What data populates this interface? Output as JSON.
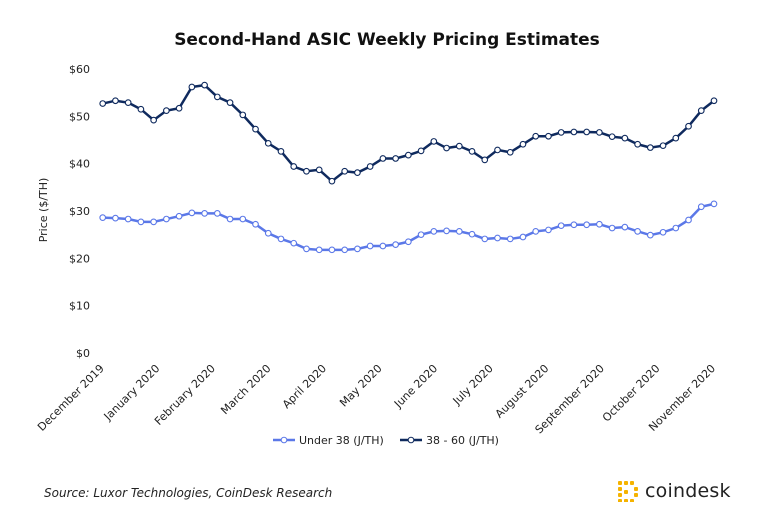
{
  "chart_data": {
    "type": "line",
    "title": "Second-Hand ASIC Weekly Pricing Estimates",
    "xlabel": "",
    "ylabel": "Price ($/TH)",
    "ylim": [
      0,
      60
    ],
    "yticks": [
      0,
      10,
      20,
      30,
      40,
      50,
      60
    ],
    "ytick_labels": [
      "$0",
      "$10",
      "$20",
      "$30",
      "$40",
      "$50",
      "$60"
    ],
    "xtick_labels": [
      "December 2019",
      "January 2020",
      "February 2020",
      "March 2020",
      "April 2020",
      "May 2020",
      "June 2020",
      "July 2020",
      "August 2020",
      "September 2020",
      "October 2020",
      "November 2020"
    ],
    "grid": false,
    "legend_position": "bottom",
    "series": [
      {
        "name": "Under 38 (J/TH)",
        "color": "#5b78e8",
        "values": [
          28.6,
          28.5,
          28.3,
          27.7,
          27.7,
          28.3,
          28.9,
          29.6,
          29.5,
          29.5,
          28.3,
          28.3,
          27.2,
          25.3,
          24.1,
          23.2,
          22.0,
          21.8,
          21.8,
          21.8,
          22.0,
          22.6,
          22.6,
          22.9,
          23.5,
          25.0,
          25.7,
          25.8,
          25.7,
          25.1,
          24.1,
          24.3,
          24.1,
          24.5,
          25.7,
          26.0,
          26.9,
          27.1,
          27.1,
          27.2,
          26.4,
          26.6,
          25.7,
          24.9,
          25.5,
          26.4,
          28.1,
          30.9,
          31.5
        ]
      },
      {
        "name": "38 - 60 (J/TH)",
        "color": "#0f2a5e",
        "values": [
          52.7,
          53.3,
          52.9,
          51.5,
          49.2,
          51.2,
          51.7,
          56.2,
          56.6,
          54.1,
          52.9,
          50.3,
          47.3,
          44.3,
          42.6,
          39.4,
          38.4,
          38.7,
          36.3,
          38.4,
          38.1,
          39.4,
          41.1,
          41.1,
          41.8,
          42.7,
          44.7,
          43.3,
          43.7,
          42.6,
          40.8,
          42.9,
          42.4,
          44.1,
          45.8,
          45.8,
          46.6,
          46.7,
          46.7,
          46.6,
          45.7,
          45.4,
          44.1,
          43.4,
          43.8,
          45.4,
          47.9,
          51.2,
          53.3
        ]
      }
    ]
  },
  "footer": {
    "source": "Source: Luxor Technologies, CoinDesk Research",
    "logo_text": "coindesk",
    "logo_color": "#f5b300"
  }
}
